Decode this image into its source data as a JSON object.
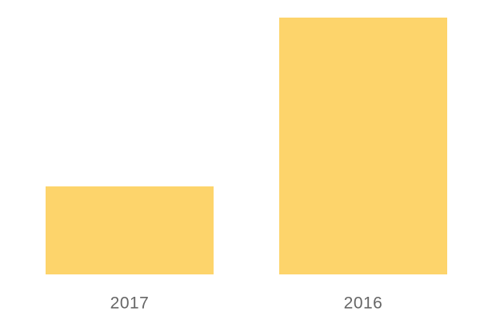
{
  "chart_data": {
    "type": "bar",
    "categories": [
      "2017",
      "2016"
    ],
    "values": [
      110,
      321
    ],
    "color": "#fdd46b"
  }
}
